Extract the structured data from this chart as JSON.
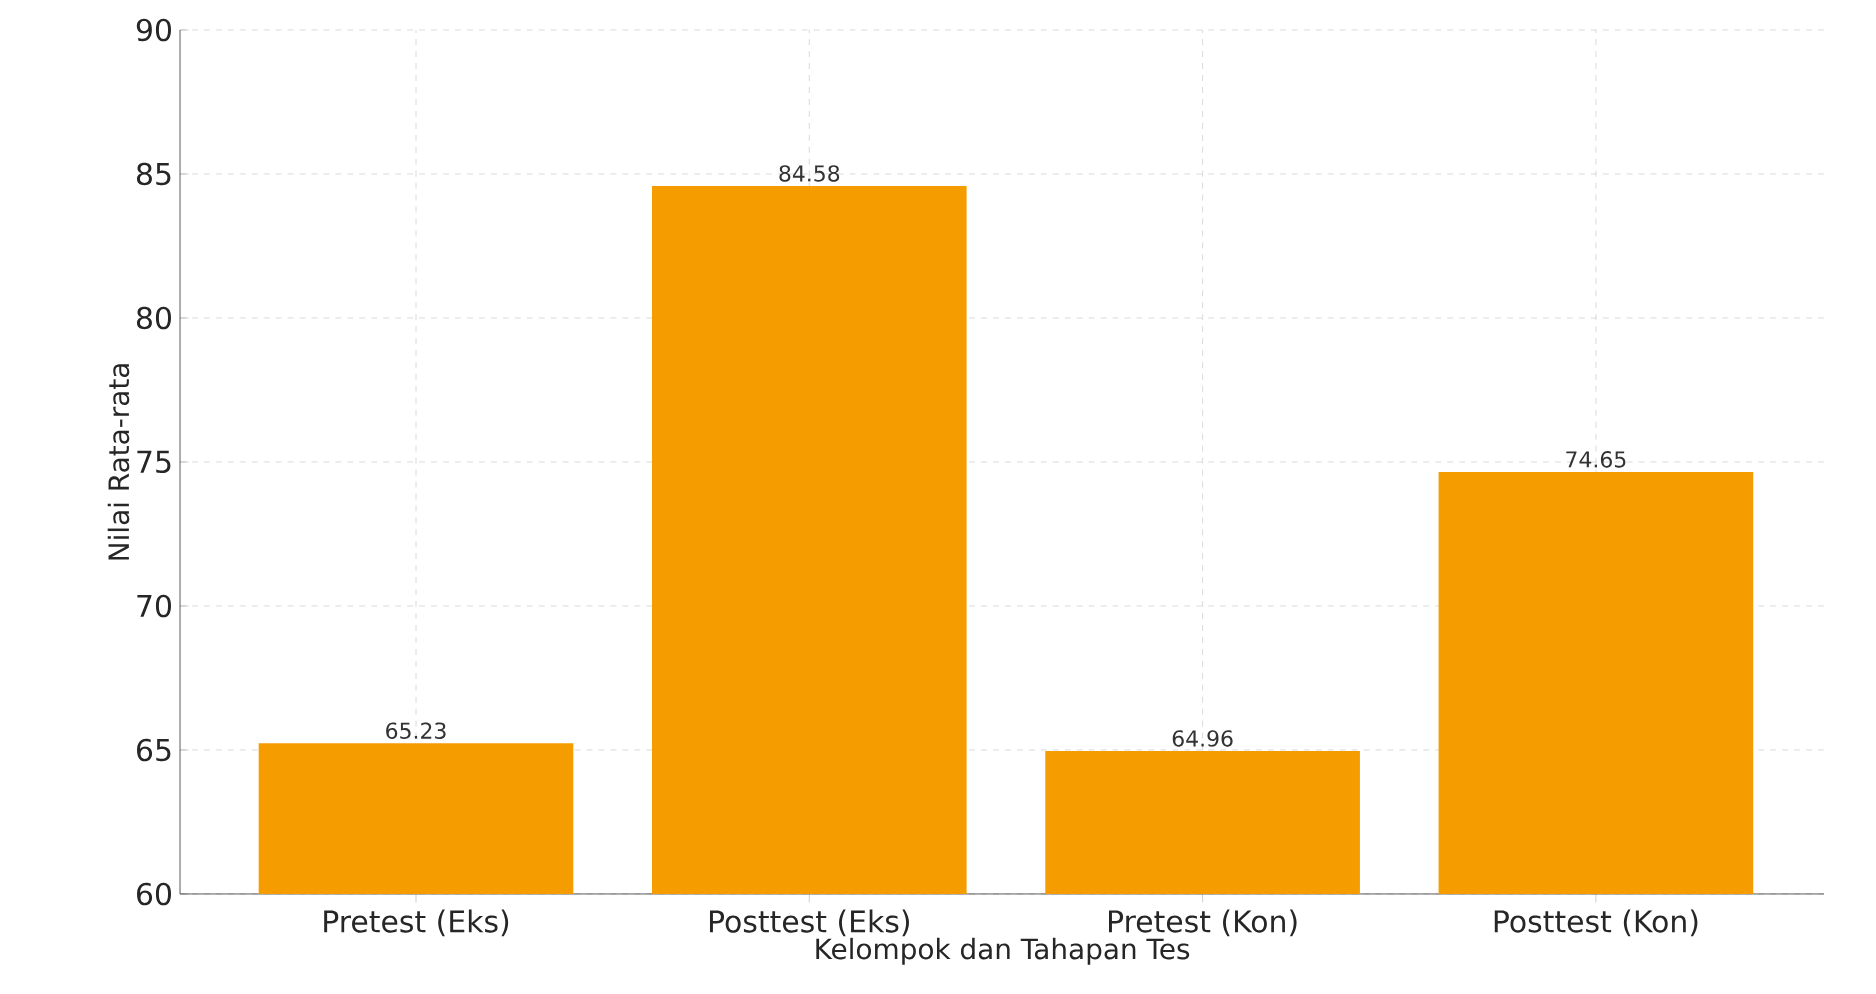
{
  "chart_data": {
    "type": "bar",
    "xlabel": "Kelompok dan Tahapan Tes",
    "ylabel": "Nilai Rata-rata",
    "categories": [
      "Pretest (Eks)",
      "Posttest (Eks)",
      "Pretest (Kon)",
      "Posttest (Kon)"
    ],
    "values": [
      65.23,
      84.58,
      64.96,
      74.65
    ],
    "color": "#f59d00",
    "ylim": [
      60,
      90
    ],
    "yticks": [
      60,
      65,
      70,
      75,
      80,
      85,
      90
    ],
    "grid": true,
    "data_labels": true
  }
}
